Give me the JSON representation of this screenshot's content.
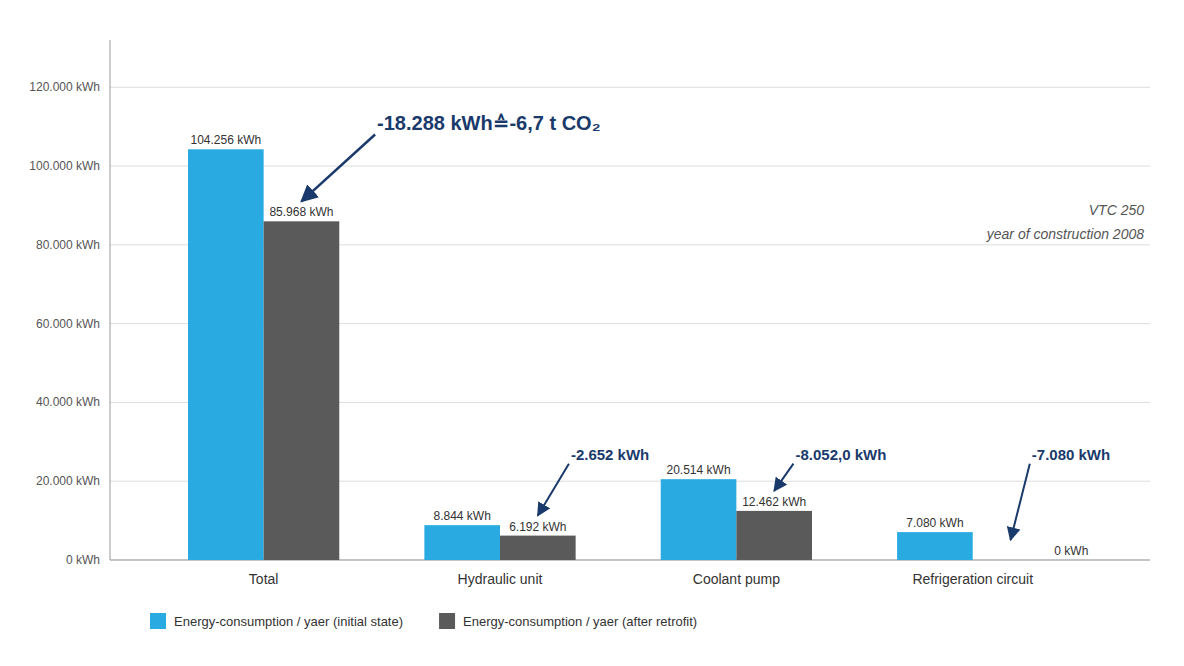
{
  "chart_data": {
    "type": "bar",
    "categories": [
      "Total",
      "Hydraulic unit",
      "Coolant pump",
      "Refrigeration circuit"
    ],
    "series": [
      {
        "name": "Energy-consumption / yaer (initial state)",
        "color": "#29ABE2",
        "values": [
          104256,
          8844,
          20514,
          7080
        ],
        "value_labels": [
          "104.256 kWh",
          "8.844 kWh",
          "20.514 kWh",
          "7.080 kWh"
        ]
      },
      {
        "name": "Energy-consumption / yaer (after retrofit)",
        "color": "#5a5a5a",
        "values": [
          85968,
          6192,
          12462,
          0
        ],
        "value_labels": [
          "85.968 kWh",
          "6.192 kWh",
          "12.462 kWh",
          "0 kWh"
        ]
      }
    ],
    "ylim": [
      0,
      132000
    ],
    "yticks": [
      {
        "value": 0,
        "label": "0 kWh"
      },
      {
        "value": 20000,
        "label": "20.000 kWh"
      },
      {
        "value": 40000,
        "label": "40.000 kWh"
      },
      {
        "value": 60000,
        "label": "60.000 kWh"
      },
      {
        "value": 80000,
        "label": "80.000 kWh"
      },
      {
        "value": 100000,
        "label": "100.000 kWh"
      },
      {
        "value": 120000,
        "label": "120.000 kWh"
      }
    ],
    "grid": true,
    "legend": "bottom",
    "data_labels": true,
    "annotations": [
      "-18.288 kWh≙-6,7 t CO₂",
      "-2.652 kWh",
      "-8.052,0 kWh",
      "-7.080 kWh",
      "VTC 250",
      "year of construction 2008"
    ]
  }
}
